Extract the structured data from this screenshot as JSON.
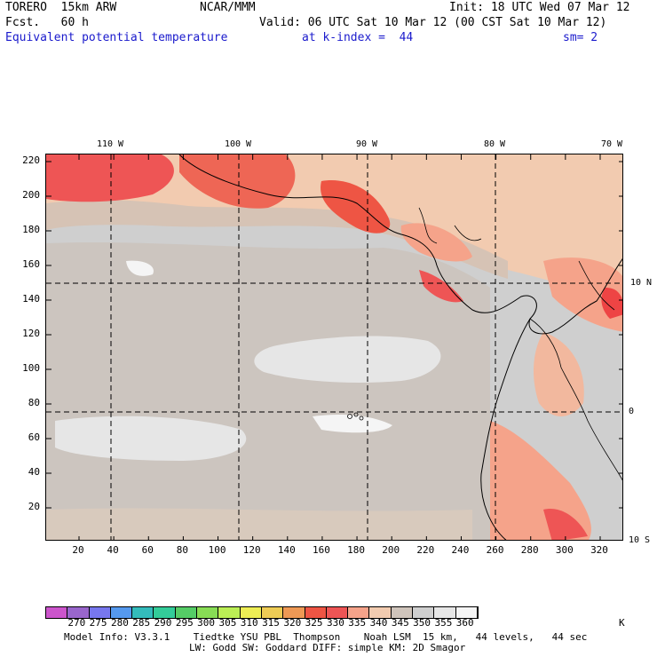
{
  "header": {
    "model_name": "TORERO  15km ARW",
    "org": "NCAR/MMM",
    "init": "Init: 18 UTC Wed 07 Mar 12",
    "fcst": "Fcst.   60 h",
    "valid": "Valid: 06 UTC Sat 10 Mar 12 (00 CST Sat 10 Mar 12)",
    "field": "Equivalent potential temperature",
    "level": "at k-index =  44",
    "smoothing": "sm= 2"
  },
  "map": {
    "top_lon_labels": [
      "110 W",
      "100 W",
      "90 W",
      "80 W",
      "70 W"
    ],
    "right_lat_labels": [
      "10 N",
      "0",
      "10 S"
    ],
    "y_ticks": [
      "220",
      "200",
      "180",
      "160",
      "140",
      "120",
      "100",
      "80",
      "60",
      "40",
      "20"
    ],
    "x_ticks": [
      "20",
      "40",
      "60",
      "80",
      "100",
      "120",
      "140",
      "160",
      "180",
      "200",
      "220",
      "240",
      "260",
      "280",
      "300",
      "320"
    ],
    "grid_y_values": [
      20,
      40,
      60,
      80,
      100,
      120,
      140,
      160,
      180,
      200,
      220
    ],
    "grid_x_values": [
      20,
      40,
      60,
      80,
      100,
      120,
      140,
      160,
      180,
      200,
      220,
      240,
      260,
      280,
      300,
      320
    ]
  },
  "colorbar": {
    "labels": [
      "270",
      "275",
      "280",
      "285",
      "290",
      "295",
      "300",
      "305",
      "310",
      "315",
      "320",
      "325",
      "330",
      "335",
      "340",
      "345",
      "350",
      "355",
      "360"
    ],
    "unit": "K",
    "colors": [
      "#cc55cc",
      "#9966cc",
      "#7777ee",
      "#5599ee",
      "#33bbbb",
      "#33cc99",
      "#55cc66",
      "#88dd55",
      "#bbee55",
      "#eeee55",
      "#eecc55",
      "#ee9955",
      "#ee5544",
      "#ee5555",
      "#f5a38a",
      "#f2cbb0",
      "#cfc4bb",
      "#cfcfcf",
      "#e6e6e6",
      "#f5f5f5"
    ]
  },
  "footer": {
    "line1": "Model Info: V3.3.1    Tiedtke YSU PBL  Thompson    Noah LSM  15 km,   44 levels,   44 sec",
    "line2": "LW: Godd SW: Goddard DIFF: simple KM: 2D Smagor"
  }
}
